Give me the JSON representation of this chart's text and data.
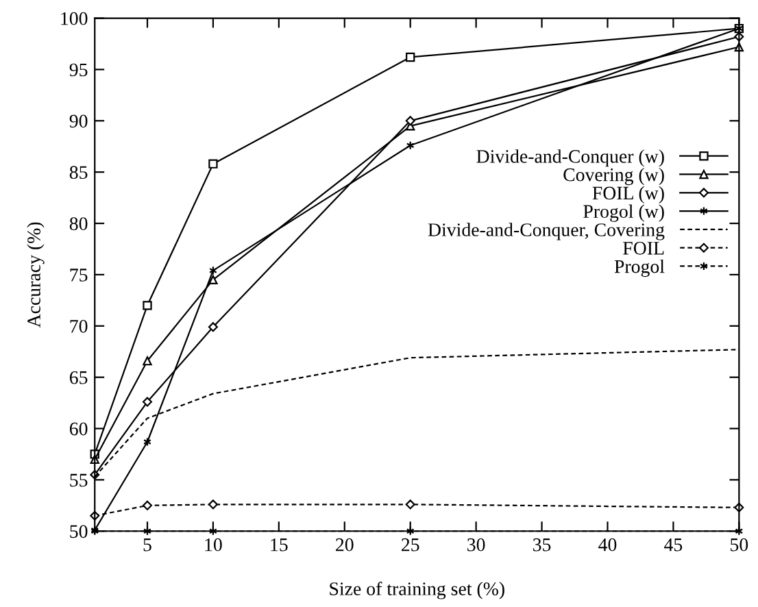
{
  "chart_data": {
    "type": "line",
    "xlabel": "Size of training set (%)",
    "ylabel": "Accuracy (%)",
    "x": [
      1,
      5,
      10,
      25,
      50
    ],
    "xlim": [
      1,
      50
    ],
    "xticks": [
      5,
      10,
      15,
      20,
      25,
      30,
      35,
      40,
      45,
      50
    ],
    "ylim": [
      50,
      100
    ],
    "yticks": [
      50,
      55,
      60,
      65,
      70,
      75,
      80,
      85,
      90,
      95,
      100
    ],
    "grid": false,
    "legend": "right",
    "series": [
      {
        "name": "Divide-and-Conquer (w)",
        "color": "#000000",
        "marker": "square",
        "line_style": "solid",
        "values": [
          57.5,
          72,
          85.8,
          96.2,
          99
        ]
      },
      {
        "name": "Covering (w)",
        "color": "#000000",
        "marker": "triangle",
        "line_style": "solid",
        "values": [
          57,
          66.6,
          74.5,
          89.5,
          97.2
        ]
      },
      {
        "name": "FOIL (w)",
        "color": "#000000",
        "marker": "diamond",
        "line_style": "solid",
        "values": [
          55.5,
          62.6,
          69.9,
          90,
          98.2
        ]
      },
      {
        "name": "Progol (w)",
        "color": "#000000",
        "marker": "cross",
        "line_style": "solid",
        "values": [
          50.1,
          58.7,
          75.4,
          87.6,
          99
        ]
      },
      {
        "name": "Divide-and-Conquer, Covering",
        "color": "#000000",
        "marker": "none",
        "line_style": "dashed",
        "values": [
          55.3,
          61,
          63.4,
          66.9,
          67.7
        ]
      },
      {
        "name": "FOIL",
        "color": "#000000",
        "marker": "diamond",
        "line_style": "dashed",
        "values": [
          51.5,
          52.5,
          52.6,
          52.6,
          52.3
        ]
      },
      {
        "name": "Progol",
        "color": "#000000",
        "marker": "cross",
        "line_style": "dashed",
        "values": [
          50,
          50,
          50,
          50,
          50
        ]
      }
    ]
  }
}
